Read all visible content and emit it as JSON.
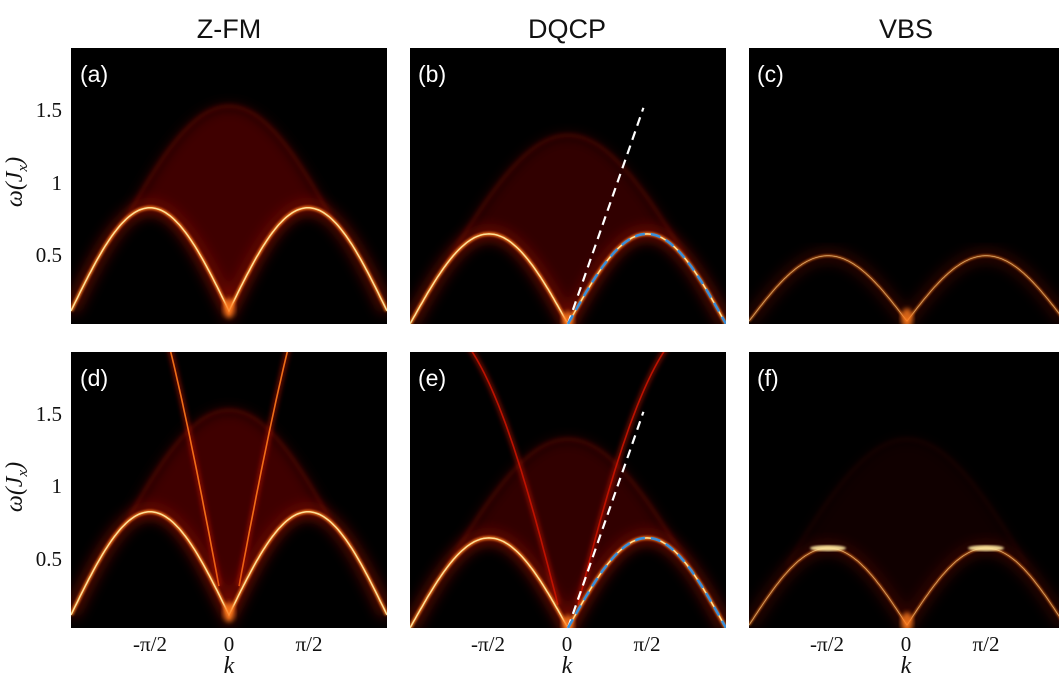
{
  "column_titles": [
    "Z-FM",
    "DQCP",
    "VBS"
  ],
  "panel_labels": [
    "(a)",
    "(b)",
    "(c)",
    "(d)",
    "(e)",
    "(f)"
  ],
  "y_axis": {
    "label": "ω(J_x)",
    "ticks": [
      "0.5",
      "1",
      "1.5"
    ],
    "tick_values": [
      0.5,
      1.0,
      1.5
    ],
    "range": [
      0.0,
      1.9
    ]
  },
  "x_axis": {
    "label": "k",
    "ticks": [
      "-π/2",
      "0",
      "π/2"
    ],
    "tick_values": [
      -1.5708,
      0,
      1.5708
    ],
    "range": [
      -3.1416,
      3.1416
    ]
  },
  "colors": {
    "background": "#000000",
    "dim": "#5a0000",
    "mid": "#c81400",
    "bright": "#ff7a1a",
    "peak": "#ffe9a0",
    "fit_dashed": "#3a8fd9",
    "linear_dashed": "#ffffff"
  },
  "chart_data": [
    {
      "panel": "(a)",
      "column": "Z-FM",
      "type": "heatmap",
      "colormap": "black-red-yellow-white",
      "dispersion_peak": 0.8,
      "gap_at_k0": 0.09,
      "continuum_top": 1.5,
      "upper_branch": false
    },
    {
      "panel": "(b)",
      "column": "DQCP",
      "type": "heatmap",
      "colormap": "black-red-yellow-white",
      "dispersion_peak": 0.62,
      "gap_at_k0": 0.0,
      "continuum_top": 1.3,
      "upper_branch": false,
      "guides": [
        "linear dashed (white)",
        "fit dashed (blue)"
      ]
    },
    {
      "panel": "(c)",
      "column": "VBS",
      "type": "heatmap",
      "colormap": "black-red-yellow-white",
      "dispersion_peak": 0.47,
      "gap_at_k0": 0.02,
      "continuum_top": null,
      "upper_branch": false
    },
    {
      "panel": "(d)",
      "column": "Z-FM",
      "type": "heatmap",
      "colormap": "black-red-yellow-white",
      "dispersion_peak": 0.8,
      "gap_at_k0": 0.09,
      "continuum_top": 1.5,
      "upper_branch": true,
      "upper_branch_slope": 1.15
    },
    {
      "panel": "(e)",
      "column": "DQCP",
      "type": "heatmap",
      "colormap": "black-red-yellow-white",
      "dispersion_peak": 0.62,
      "gap_at_k0": 0.0,
      "continuum_top": 1.3,
      "upper_branch": true,
      "upper_branch_slope": 0.75,
      "guides": [
        "linear dashed (white)",
        "fit dashed (blue)"
      ]
    },
    {
      "panel": "(f)",
      "column": "VBS",
      "type": "heatmap",
      "colormap": "black-red-yellow-white",
      "dispersion_peak": 0.55,
      "gap_at_k0": 0.02,
      "continuum_top": 1.3,
      "upper_branch": false
    }
  ]
}
